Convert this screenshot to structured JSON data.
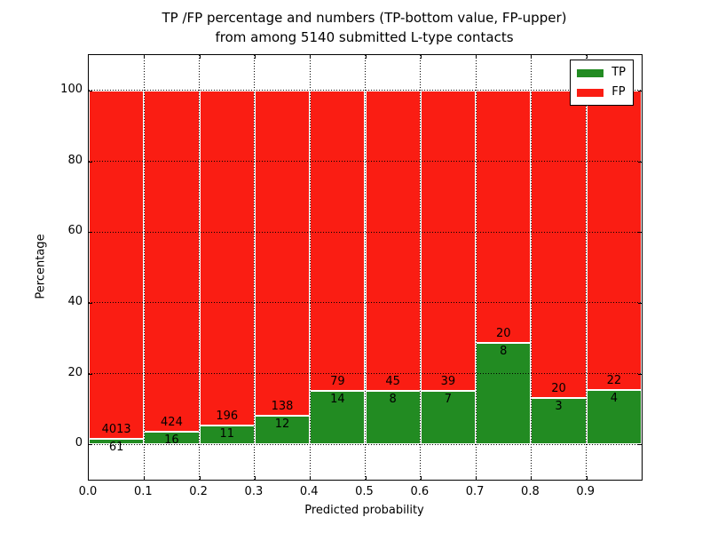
{
  "title": {
    "line1": "TP /FP percentage and numbers (TP-bottom value, FP-upper)",
    "line2": "from among 5140 submitted L-type contacts"
  },
  "axes": {
    "xlabel": "Predicted probability",
    "ylabel": "Percentage",
    "x_ticks": [
      "0.0",
      "0.1",
      "0.2",
      "0.3",
      "0.4",
      "0.5",
      "0.6",
      "0.7",
      "0.8",
      "0.9"
    ],
    "y_ticks": [
      "0",
      "20",
      "40",
      "60",
      "80",
      "100"
    ]
  },
  "legend": [
    {
      "label": "TP",
      "color": "#228b22"
    },
    {
      "label": "FP",
      "color": "#fa1d13"
    }
  ],
  "colors": {
    "tp": "#228b22",
    "fp": "#fa1d13",
    "grid": "#000000",
    "bar_edge": "#ffffff"
  },
  "chart_data": {
    "type": "bar",
    "stacked": true,
    "normalized_to_percent": true,
    "title": "TP /FP percentage and numbers (TP-bottom value, FP-upper) from among 5140 submitted L-type contacts",
    "xlabel": "Predicted probability",
    "ylabel": "Percentage",
    "xlim": [
      0.0,
      1.0
    ],
    "ylim": [
      -10,
      110
    ],
    "grid": "dotted",
    "legend_position": "upper right",
    "bin_width": 0.1,
    "bin_starts": [
      0.0,
      0.1,
      0.2,
      0.3,
      0.4,
      0.5,
      0.6,
      0.7,
      0.8,
      0.9
    ],
    "total_contacts": 5140,
    "series": [
      {
        "name": "TP",
        "counts": [
          61,
          16,
          11,
          12,
          14,
          8,
          7,
          8,
          3,
          4
        ]
      },
      {
        "name": "FP",
        "counts": [
          4013,
          424,
          196,
          138,
          79,
          45,
          39,
          20,
          20,
          22
        ]
      }
    ],
    "tp_percent": [
      1.5,
      3.64,
      5.31,
      8.0,
      15.05,
      15.09,
      15.22,
      28.57,
      13.04,
      15.38
    ],
    "fp_percent": [
      98.5,
      96.36,
      94.69,
      92.0,
      84.95,
      84.91,
      84.78,
      71.43,
      86.96,
      84.62
    ]
  }
}
